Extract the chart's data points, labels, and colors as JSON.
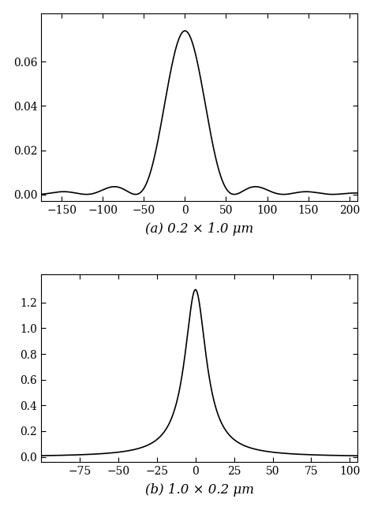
{
  "plot_a": {
    "x_min": -180,
    "x_max": 210,
    "caption": "(a) 0.2 × 1.0 μm",
    "yticks": [
      0,
      0.02,
      0.04,
      0.06
    ],
    "xticks": [
      -150,
      -100,
      -50,
      0,
      50,
      100,
      150,
      200
    ],
    "ylim": [
      -0.003,
      0.082
    ],
    "xlim": [
      -175,
      210
    ],
    "peak_amplitude": 0.074,
    "sinc_half_period": 60.0,
    "side_lobe_scale": 1.0
  },
  "plot_b": {
    "x_min": -100,
    "x_max": 105,
    "caption": "(b) 1.0 × 0.2 μm",
    "yticks": [
      0,
      0.2,
      0.4,
      0.6,
      0.8,
      1.0,
      1.2
    ],
    "xticks": [
      -75,
      -50,
      -25,
      0,
      25,
      50,
      75,
      100
    ],
    "ylim": [
      -0.04,
      1.42
    ],
    "xlim": [
      -100,
      105
    ],
    "peak_amplitude": 1.3,
    "lorentz_gamma": 8.5
  },
  "line_color": "#000000",
  "line_width": 1.2,
  "background_color": "#ffffff",
  "figsize": [
    4.74,
    6.47
  ],
  "dpi": 100,
  "caption_fontsize": 12,
  "tick_fontsize": 10
}
